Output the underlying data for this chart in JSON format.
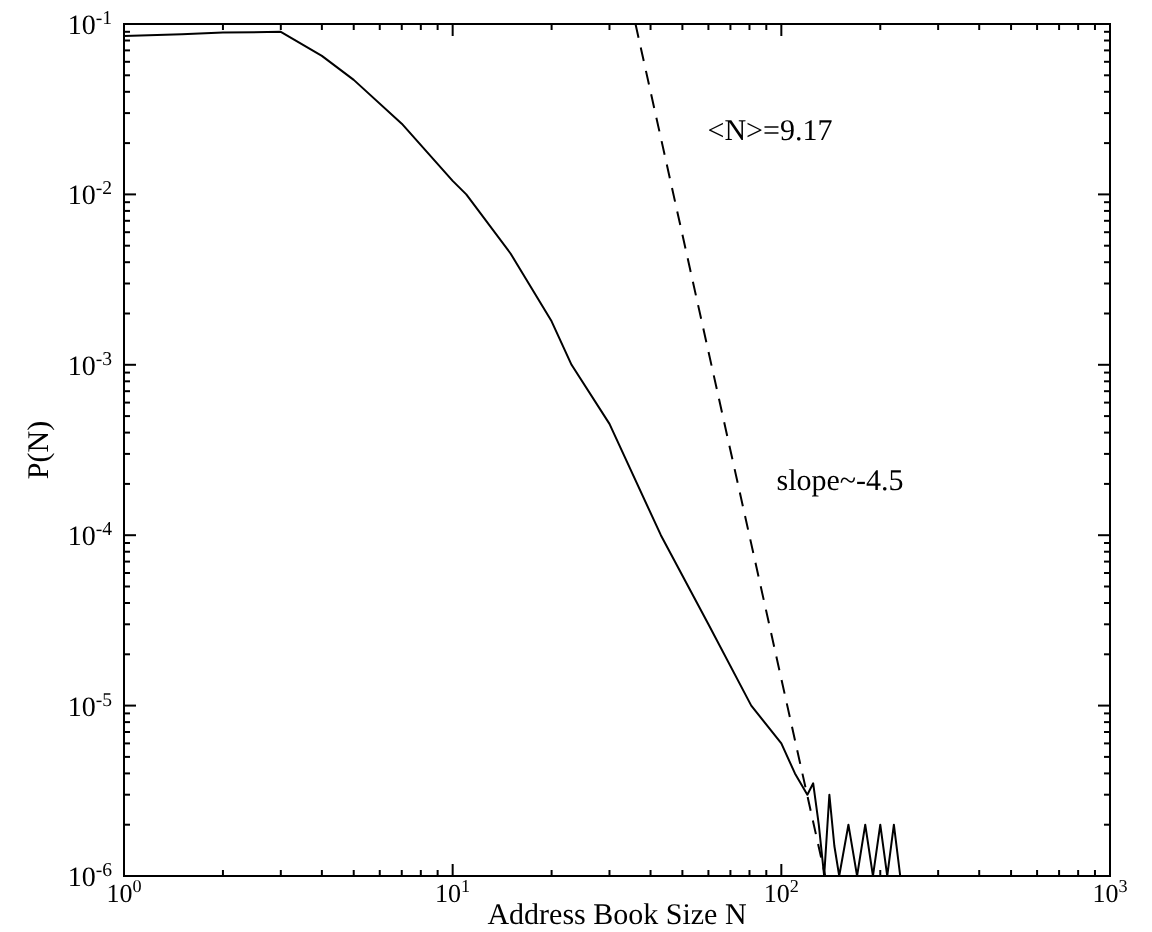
{
  "chart_data": {
    "type": "line",
    "xlabel": "Address Book Size N",
    "ylabel": "P(N)",
    "log": "xy",
    "xlim": [
      1,
      1000
    ],
    "ylim": [
      1e-06,
      0.1
    ],
    "xticks": [
      {
        "value": 1,
        "label": "10$^{0}$"
      },
      {
        "value": 10,
        "label": "10$^{1}$"
      },
      {
        "value": 100,
        "label": "10$^{2}$"
      },
      {
        "value": 1000,
        "label": "10$^{3}$"
      }
    ],
    "yticks": [
      {
        "value": 1e-06,
        "label": "10$^{-6}$"
      },
      {
        "value": 1e-05,
        "label": "10$^{-5}$"
      },
      {
        "value": 0.0001,
        "label": "10$^{-4}$"
      },
      {
        "value": 0.001,
        "label": "10$^{-3}$"
      },
      {
        "value": 0.01,
        "label": "10$^{-2}$"
      },
      {
        "value": 0.1,
        "label": "10$^{-1}$"
      }
    ],
    "grid": false,
    "series": [
      {
        "color": "#000000",
        "line_style": "solid",
        "x": [
          1,
          1.5,
          2,
          3,
          4,
          5,
          7,
          10,
          11,
          15,
          20,
          23,
          30,
          43,
          60,
          81,
          100,
          110,
          120,
          125,
          130,
          135,
          140,
          145,
          150,
          160,
          170,
          180,
          190,
          200,
          210,
          220,
          230
        ],
        "values": [
          0.085,
          0.087,
          0.089,
          0.09,
          0.065,
          0.047,
          0.026,
          0.012,
          0.01,
          0.0045,
          0.0018,
          0.001,
          0.00045,
          0.0001,
          3e-05,
          1e-05,
          6e-06,
          4e-06,
          3e-06,
          3.5e-06,
          2e-06,
          1e-06,
          3e-06,
          1.5e-06,
          1e-06,
          2e-06,
          1e-06,
          2e-06,
          1e-06,
          2e-06,
          1e-06,
          2e-06,
          1e-06
        ]
      },
      {
        "color": "#000000",
        "line_style": "dashed",
        "x": [
          36,
          136
        ],
        "values": [
          0.1,
          1e-06
        ]
      }
    ],
    "annotations": [
      "<N>=9.17",
      "slope~-4.5"
    ]
  }
}
